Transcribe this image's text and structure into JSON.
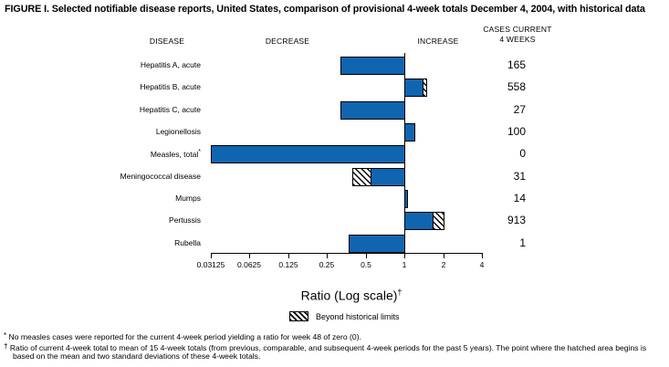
{
  "title": "FIGURE I. Selected notifiable disease reports, United States, comparison of provisional 4-week totals December 4, 2004, with historical data",
  "column_headers": {
    "disease": "DISEASE",
    "decrease": "DECREASE",
    "increase": "INCREASE",
    "cases_line1": "CASES CURRENT",
    "cases_line2": "4 WEEKS"
  },
  "chart_data": {
    "type": "bar",
    "orientation": "horizontal",
    "x_scale": "log",
    "x_axis_label": "Ratio (Log scale)",
    "x_axis_label_superscript": "†",
    "x_tick_labels": [
      "0.03125",
      "0.0625",
      "0.125",
      "0.25",
      "0.5",
      "1",
      "2",
      "4"
    ],
    "x_range": [
      0.03125,
      4
    ],
    "baseline_ratio": 1,
    "legend": {
      "swatch": "hatched-box",
      "label": "Beyond historical limits"
    },
    "rows": [
      {
        "disease": "Hepatitis A, acute",
        "cases": "165",
        "ratio": 0.32
      },
      {
        "disease": "Hepatitis B, acute",
        "cases": "558",
        "ratio": 1.49,
        "hatch_from": 1.39
      },
      {
        "disease": "Hepatitis C, acute",
        "cases": "27",
        "ratio": 0.32
      },
      {
        "disease": "Legionellosis",
        "cases": "100",
        "ratio": 1.22
      },
      {
        "disease": "Measles, total",
        "superscript": "*",
        "cases": "0",
        "ratio": 0,
        "off_scale_low": true
      },
      {
        "disease": "Meningococcal disease",
        "cases": "31",
        "ratio": 0.39,
        "hatch_from": 0.55
      },
      {
        "disease": "Mumps",
        "cases": "14",
        "ratio": 1.07
      },
      {
        "disease": "Pertussis",
        "cases": "913",
        "ratio": 2.05,
        "hatch_from": 1.65
      },
      {
        "disease": "Rubella",
        "cases": "1",
        "ratio": 0.37
      }
    ]
  },
  "footnotes": [
    {
      "marker": "*",
      "text": "No measles cases were reported for the current 4-week period yielding a ratio for week 48 of zero (0)."
    },
    {
      "marker": "†",
      "text": "Ratio of current 4-week total to mean of 15 4-week totals (from previous, comparable, and subsequent 4-week periods for the past 5 years). The point where the hatched area begins is based on the mean and two standard deviations of these 4-week totals."
    }
  ],
  "colors": {
    "bar_fill": "#1065b0",
    "bar_border": "#000000",
    "hatch": "#000000",
    "background": "#ffffff",
    "text": "#000000"
  }
}
